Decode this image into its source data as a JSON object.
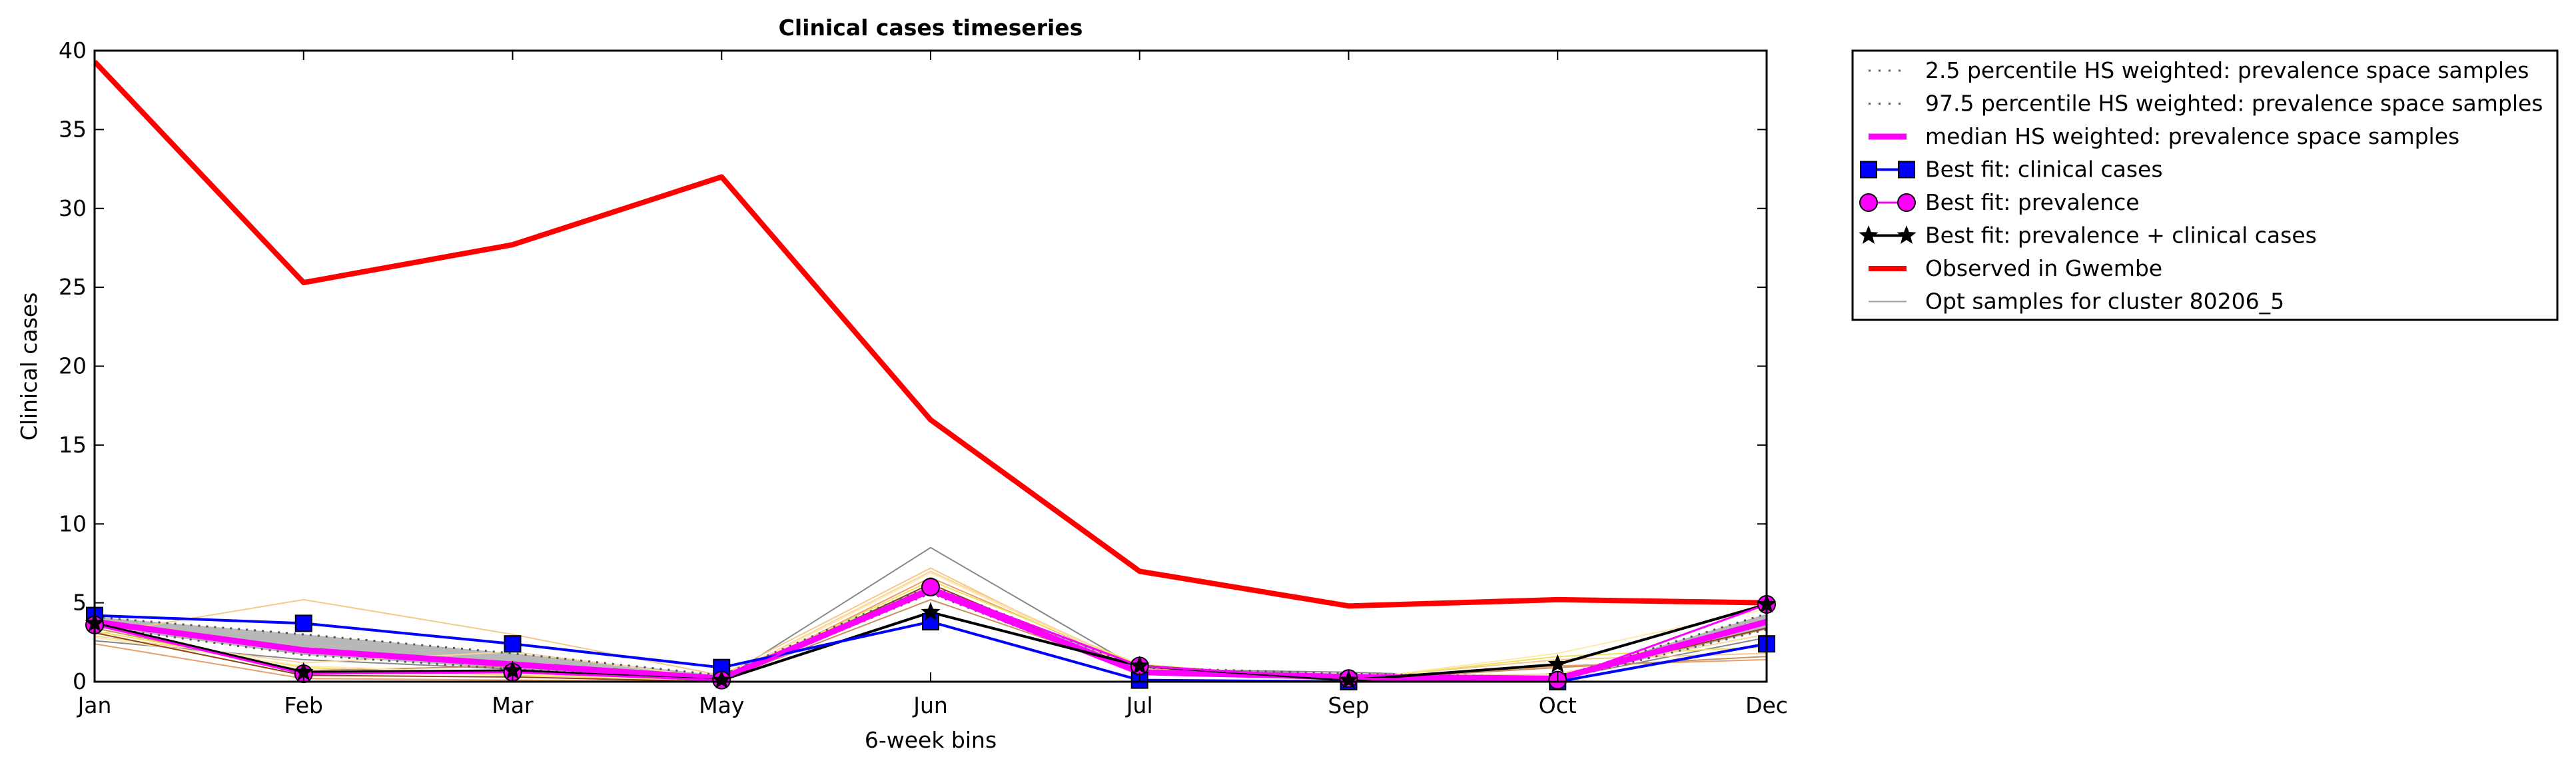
{
  "chart_data": {
    "type": "line",
    "title": "Clinical cases timeseries",
    "xlabel": "6-week bins",
    "ylabel": "Clinical cases",
    "categories": [
      "Jan",
      "Feb",
      "Mar",
      "May",
      "Jun",
      "Jul",
      "Sep",
      "Oct",
      "Dec"
    ],
    "ylim": [
      0,
      40
    ],
    "yticks": [
      0,
      5,
      10,
      15,
      20,
      25,
      30,
      35,
      40
    ],
    "grid": false,
    "legend_position": "outside right, top",
    "band": {
      "lower_name": "2.5 percentile HS weighted: prevalence space samples",
      "upper_name": "97.5 percentile HS weighted: prevalence space samples",
      "lower": [
        3.5,
        1.7,
        0.8,
        0.1,
        5.6,
        0.5,
        0.3,
        0.1,
        3.3
      ],
      "upper": [
        4.1,
        3.0,
        1.8,
        0.4,
        6.1,
        0.9,
        0.5,
        0.3,
        4.3
      ],
      "fill_color": "#a0a0a0",
      "line_color": "#555555"
    },
    "series": [
      {
        "name": "median HS weighted: prevalence space samples",
        "values": [
          3.8,
          2.0,
          1.1,
          0.2,
          5.8,
          0.6,
          0.3,
          0.2,
          3.8
        ],
        "color": "#ff00ff",
        "marker": "none",
        "width": 9
      },
      {
        "name": "Best fit: clinical cases",
        "values": [
          4.2,
          3.7,
          2.4,
          0.9,
          3.8,
          0.1,
          0.0,
          0.0,
          2.4
        ],
        "color": "#0000ff",
        "marker": "square",
        "width": 4
      },
      {
        "name": "Best fit: prevalence",
        "values": [
          3.6,
          0.5,
          0.6,
          0.1,
          6.0,
          1.0,
          0.2,
          0.1,
          4.9
        ],
        "color": "#ff00ff",
        "marker": "circle",
        "width": 3
      },
      {
        "name": "Best fit: prevalence + clinical cases",
        "values": [
          3.7,
          0.6,
          0.7,
          0.1,
          4.4,
          1.0,
          0.1,
          1.1,
          4.9
        ],
        "color": "#000000",
        "marker": "star",
        "width": 4
      },
      {
        "name": "Observed in Gwembe",
        "values": [
          39.3,
          25.3,
          27.7,
          32.0,
          16.6,
          7.0,
          4.8,
          5.2,
          5.0
        ],
        "color": "#ff0000",
        "marker": "none",
        "width": 8
      },
      {
        "name": "Opt samples for cluster 80206_5",
        "values": [
          2.6,
          1.4,
          0.8,
          0.1,
          8.5,
          0.8,
          0.6,
          0.2,
          2.8
        ],
        "color": "#a0a0a0",
        "marker": "none",
        "width": 2
      }
    ],
    "samples": [
      {
        "values": [
          2.6,
          1.4,
          0.8,
          0.1,
          8.5,
          0.8,
          0.6,
          0.2,
          2.8
        ],
        "color": "#888888"
      },
      {
        "values": [
          3.0,
          5.2,
          3.0,
          0.4,
          7.2,
          0.6,
          0.2,
          1.4,
          1.8
        ],
        "color": "#f4c98a"
      },
      {
        "values": [
          2.4,
          0.2,
          0.1,
          0.0,
          6.6,
          0.9,
          0.1,
          1.0,
          1.4
        ],
        "color": "#e8a06a"
      },
      {
        "values": [
          3.2,
          0.9,
          0.4,
          0.1,
          6.4,
          1.1,
          0.1,
          1.6,
          2.2
        ],
        "color": "#f0e060"
      },
      {
        "values": [
          2.9,
          1.2,
          1.9,
          0.2,
          7.0,
          0.9,
          0.3,
          0.5,
          3.0
        ],
        "color": "#f7d7a0"
      },
      {
        "values": [
          3.4,
          0.7,
          1.0,
          0.1,
          5.2,
          0.7,
          0.1,
          0.9,
          1.6
        ],
        "color": "#c89060"
      },
      {
        "values": [
          2.8,
          1.0,
          0.5,
          0.1,
          6.9,
          0.8,
          0.1,
          1.8,
          4.6
        ],
        "color": "#ffe9b0"
      },
      {
        "values": [
          3.1,
          0.4,
          0.3,
          0.0,
          6.2,
          0.6,
          0.1,
          0.3,
          3.4
        ],
        "color": "#8b4513"
      }
    ]
  }
}
